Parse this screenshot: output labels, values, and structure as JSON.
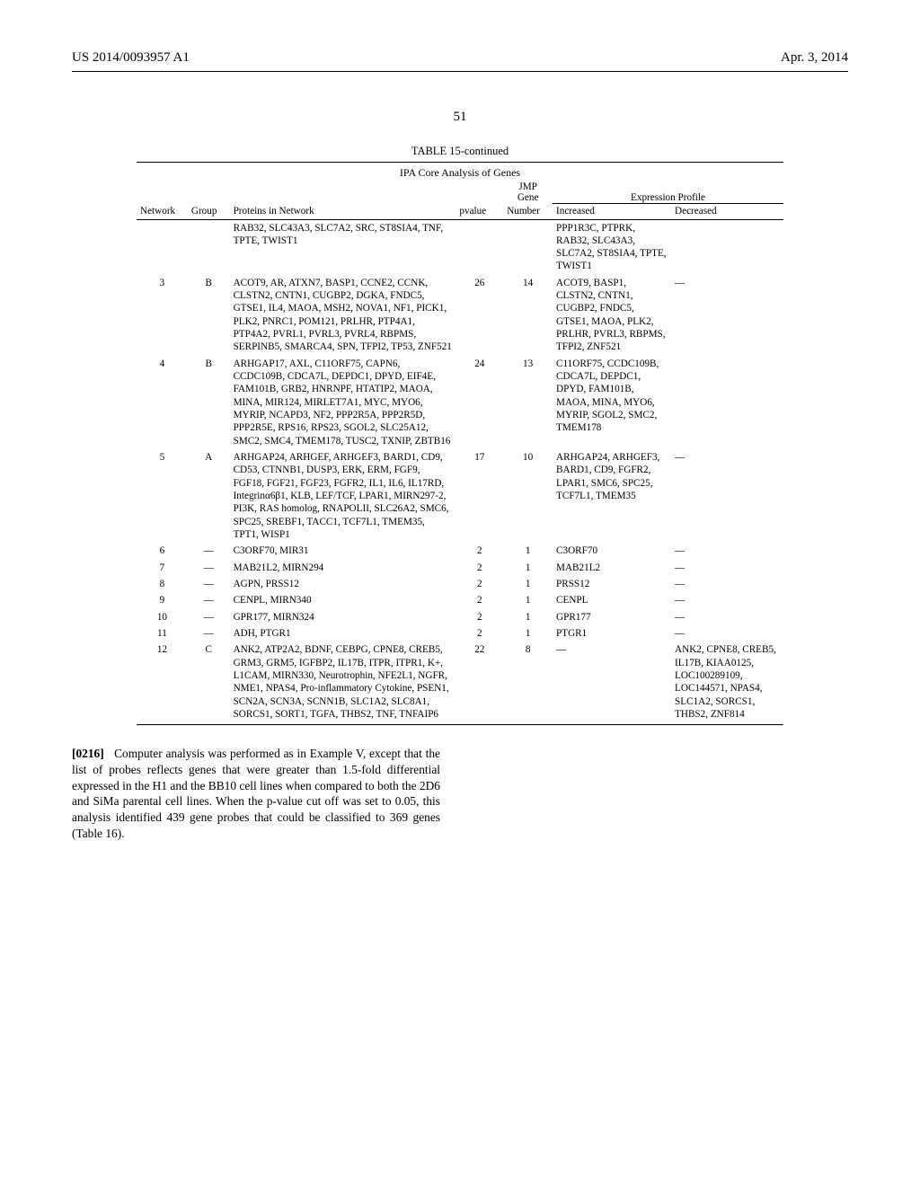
{
  "header": {
    "left": "US 2014/0093957 A1",
    "right": "Apr. 3, 2014"
  },
  "pagenum": "51",
  "table": {
    "title": "TABLE 15-continued",
    "subtitle": "IPA Core Analysis of Genes",
    "sup_jmp": "JMP",
    "sup_gene": "Gene",
    "sup_expr": "Expression Profile",
    "headers": {
      "network": "Network",
      "group": "Group",
      "proteins": "Proteins in Network",
      "pvalue": "pvalue",
      "number": "Number",
      "increased": "Increased",
      "decreased": "Decreased"
    },
    "rows": [
      {
        "network": "",
        "group": "",
        "proteins": "RAB32, SLC43A3, SLC7A2, SRC, ST8SIA4, TNF, TPTE, TWIST1",
        "pvalue": "",
        "number": "",
        "increased": "PPP1R3C, PTPRK, RAB32, SLC43A3, SLC7A2, ST8SIA4, TPTE, TWIST1",
        "decreased": ""
      },
      {
        "network": "3",
        "group": "B",
        "proteins": "ACOT9, AR, ATXN7, BASP1, CCNE2, CCNK, CLSTN2, CNTN1, CUGBP2, DGKA, FNDC5, GTSE1, IL4, MAOA, MSH2, NOVA1, NF1, PICK1, PLK2, PNRC1, POM121, PRLHR, PTP4A1, PTP4A2, PVRL1, PVRL3, PVRL4, RBPMS, SERPINB5, SMARCA4, SPN, TFPI2, TP53, ZNF521",
        "pvalue": "26",
        "number": "14",
        "increased": "ACOT9, BASP1, CLSTN2, CNTN1, CUGBP2, FNDC5, GTSE1, MAOA, PLK2, PRLHR, PVRL3, RBPMS, TFPI2, ZNF521",
        "decreased": "—"
      },
      {
        "network": "4",
        "group": "B",
        "proteins": "ARHGAP17, AXL, C11ORF75, CAPN6, CCDC109B, CDCA7L, DEPDC1, DPYD, EIF4E, FAM101B, GRB2, HNRNPF, HTATIP2, MAOA, MINA, MIR124, MIRLET7A1, MYC, MYO6, MYRIP, NCAPD3, NF2, PPP2R5A, PPP2R5D, PPP2R5E, RPS16, RPS23, SGOL2, SLC25A12, SMC2, SMC4, TMEM178, TUSC2, TXNIP, ZBTB16",
        "pvalue": "24",
        "number": "13",
        "increased": "C11ORF75, CCDC109B, CDCA7L, DEPDC1, DPYD, FAM101B, MAOA, MINA, MYO6, MYRIP, SGOL2, SMC2, TMEM178",
        "decreased": ""
      },
      {
        "network": "5",
        "group": "A",
        "proteins": "ARHGAP24, ARHGEF, ARHGEF3, BARD1, CD9, CD53, CTNNB1, DUSP3, ERK, ERM, FGF9, FGF18, FGF21, FGF23, FGFR2, IL1, IL6, IL17RD, Integrinα6β1, KLB, LEF/TCF, LPAR1, MIRN297-2, PI3K, RAS homolog, RNAPOLII, SLC26A2, SMC6, SPC25, SREBF1, TACC1, TCF7L1, TMEM35, TPT1, WISP1",
        "pvalue": "17",
        "number": "10",
        "increased": "ARHGAP24, ARHGEF3, BARD1, CD9, FGFR2, LPAR1, SMC6, SPC25, TCF7L1, TMEM35",
        "decreased": "—"
      },
      {
        "network": "6",
        "group": "—",
        "proteins": "C3ORF70, MIR31",
        "pvalue": "2",
        "number": "1",
        "increased": "C3ORF70",
        "decreased": "—"
      },
      {
        "network": "7",
        "group": "—",
        "proteins": "MAB21L2, MIRN294",
        "pvalue": "2",
        "number": "1",
        "increased": "MAB21L2",
        "decreased": "—"
      },
      {
        "network": "8",
        "group": "—",
        "proteins": "AGPN, PRSS12",
        "pvalue": "2",
        "number": "1",
        "increased": "PRSS12",
        "decreased": "—"
      },
      {
        "network": "9",
        "group": "—",
        "proteins": "CENPL, MIRN340",
        "pvalue": "2",
        "number": "1",
        "increased": "CENPL",
        "decreased": "—"
      },
      {
        "network": "10",
        "group": "—",
        "proteins": "GPR177, MIRN324",
        "pvalue": "2",
        "number": "1",
        "increased": "GPR177",
        "decreased": "—"
      },
      {
        "network": "11",
        "group": "—",
        "proteins": "ADH, PTGR1",
        "pvalue": "2",
        "number": "1",
        "increased": "PTGR1",
        "decreased": "—"
      },
      {
        "network": "12",
        "group": "C",
        "proteins": "ANK2, ATP2A2, BDNF, CEBPG, CPNE8, CREB5, GRM3, GRM5, IGFBP2, IL17B, ITPR, ITPR1, K+, L1CAM, MIRN330, Neurotrophin, NFE2L1, NGFR, NME1, NPAS4, Pro-inflammatory Cytokine, PSEN1, SCN2A, SCN3A, SCNN1B, SLC1A2, SLC8A1, SORCS1, SORT1, TGFA, THBS2, TNF, TNFAIP6",
        "pvalue": "22",
        "number": "8",
        "increased": "—",
        "decreased": "ANK2, CPNE8, CREB5, IL17B, KIAA0125, LOC100289109, LOC144571, NPAS4, SLC1A2, SORCS1, THBS2, ZNF814"
      }
    ]
  },
  "paragraph": {
    "num": "[0216]",
    "text": "Computer analysis was performed as in Example V, except that the list of probes reflects genes that were greater than 1.5-fold differential expressed in the H1 and the BB10 cell lines when compared to both the 2D6 and SiMa parental cell lines. When the p-value cut off was set to 0.05, this analysis identified 439 gene probes that could be classified to 369 genes (Table 16)."
  }
}
